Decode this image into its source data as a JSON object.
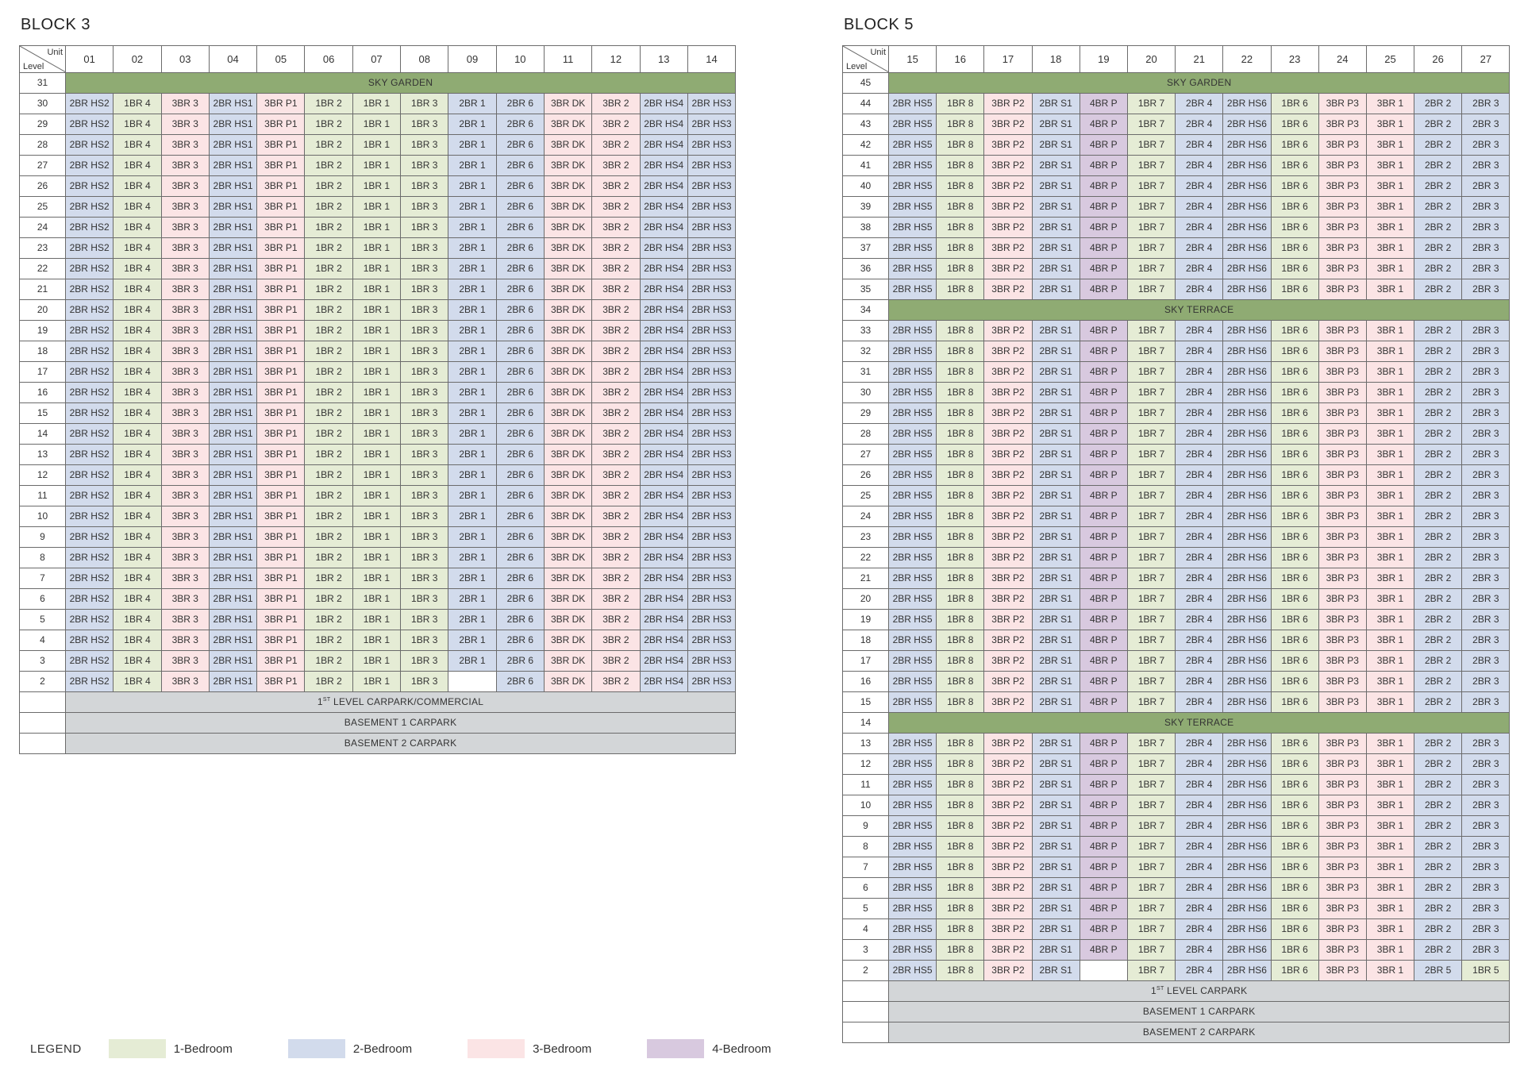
{
  "colors": {
    "one_bedroom": "#e5ecd5",
    "two_bedroom": "#d2dbec",
    "three_bedroom": "#fbe4e5",
    "four_bedroom": "#d8c9df",
    "sky": "#8fab73",
    "basement": "#d3d6d8"
  },
  "corner": {
    "unit": "Unit",
    "level": "Level"
  },
  "block3": {
    "title": "BLOCK 3",
    "units": [
      "01",
      "02",
      "03",
      "04",
      "05",
      "06",
      "07",
      "08",
      "09",
      "10",
      "11",
      "12",
      "13",
      "14"
    ],
    "unit_types": [
      "2BR HS2",
      "1BR 4",
      "3BR 3",
      "2BR HS1",
      "3BR P1",
      "1BR 2",
      "1BR 1",
      "1BR 3",
      "2BR 1",
      "2BR 6",
      "3BR DK",
      "3BR 2",
      "2BR HS4",
      "2BR HS3"
    ],
    "unit_colors": [
      "c2",
      "c1",
      "c3",
      "c2",
      "c3",
      "c1",
      "c1",
      "c1",
      "c2",
      "c2",
      "c3",
      "c3",
      "c2",
      "c2"
    ],
    "sky_garden": {
      "level": "31",
      "label": "SKY GARDEN"
    },
    "levels": [
      "30",
      "29",
      "28",
      "27",
      "26",
      "25",
      "24",
      "23",
      "22",
      "21",
      "20",
      "19",
      "18",
      "17",
      "16",
      "15",
      "14",
      "13",
      "12",
      "11",
      "10",
      "9",
      "8",
      "7",
      "6",
      "5",
      "4",
      "3",
      "2"
    ],
    "level2_empty_unit_index": 8,
    "carpark_prefix": "1",
    "carpark_sup": "ST",
    "carpark_suffix": " LEVEL CARPARK/COMMERCIAL",
    "basements": [
      "BASEMENT 1 CARPARK",
      "BASEMENT 2 CARPARK"
    ]
  },
  "block5": {
    "title": "BLOCK 5",
    "units": [
      "15",
      "16",
      "17",
      "18",
      "19",
      "20",
      "21",
      "22",
      "23",
      "24",
      "25",
      "26",
      "27"
    ],
    "unit_types": [
      "2BR HS5",
      "1BR 8",
      "3BR P2",
      "2BR S1",
      "4BR P",
      "1BR 7",
      "2BR 4",
      "2BR HS6",
      "1BR 6",
      "3BR P3",
      "3BR 1",
      "2BR 2",
      "2BR 3"
    ],
    "unit_colors": [
      "c2",
      "c1",
      "c3",
      "c2",
      "c4",
      "c1",
      "c2",
      "c2",
      "c1",
      "c3",
      "c3",
      "c2",
      "c2"
    ],
    "sky_garden": {
      "level": "45",
      "label": "SKY GARDEN"
    },
    "sky_terraces": [
      {
        "level": "34",
        "label": "SKY TERRACE"
      },
      {
        "level": "14",
        "label": "SKY TERRACE"
      }
    ],
    "levels_upper": [
      "44",
      "43",
      "42",
      "41",
      "40",
      "39",
      "38",
      "37",
      "36",
      "35"
    ],
    "levels_middle": [
      "33",
      "32",
      "31",
      "30",
      "29",
      "28",
      "27",
      "26",
      "25",
      "24",
      "23",
      "22",
      "21",
      "20",
      "19",
      "18",
      "17",
      "16",
      "15"
    ],
    "levels_lower": [
      "13",
      "12",
      "11",
      "10",
      "9",
      "8",
      "7",
      "6",
      "5",
      "4",
      "3"
    ],
    "level2": {
      "level": "2",
      "cells": [
        "2BR HS5",
        "1BR 8",
        "3BR P2",
        "2BR S1",
        "",
        "1BR 7",
        "2BR 4",
        "2BR HS6",
        "1BR 6",
        "3BR P3",
        "3BR 1",
        "2BR 5",
        "1BR 5"
      ],
      "colors": [
        "c2",
        "c1",
        "c3",
        "c2",
        "empty",
        "c1",
        "c2",
        "c2",
        "c1",
        "c3",
        "c3",
        "c2",
        "c1"
      ]
    },
    "carpark_prefix": "1",
    "carpark_sup": "ST",
    "carpark_suffix": " LEVEL CARPARK",
    "basements": [
      "BASEMENT 1 CARPARK",
      "BASEMENT 2 CARPARK"
    ]
  },
  "legend": {
    "title": "LEGEND",
    "items": [
      {
        "label": "1-Bedroom",
        "color": "#e5ecd5"
      },
      {
        "label": "2-Bedroom",
        "color": "#d2dbec"
      },
      {
        "label": "3-Bedroom",
        "color": "#fbe4e5"
      },
      {
        "label": "4-Bedroom",
        "color": "#d8c9df"
      }
    ]
  }
}
